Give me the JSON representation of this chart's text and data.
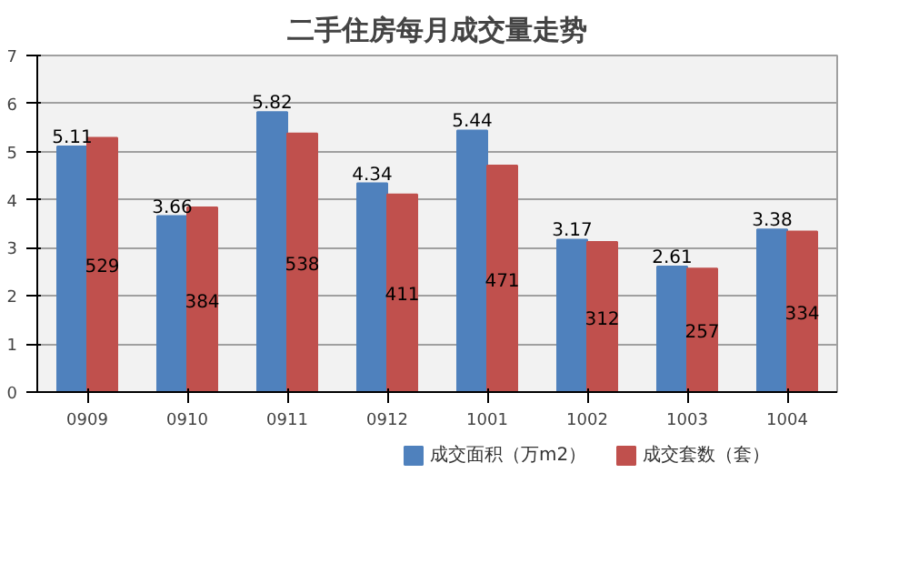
{
  "chart_data": {
    "type": "bar",
    "title": "二手住房每月成交量走势",
    "categories": [
      "0909",
      "0910",
      "0911",
      "0912",
      "1001",
      "1002",
      "1003",
      "1004"
    ],
    "series": [
      {
        "name": "成交面积（万m2）",
        "color": "#4f81bd",
        "values": [
          5.11,
          3.66,
          5.82,
          4.34,
          5.44,
          3.17,
          2.61,
          3.38
        ],
        "data_labels": true
      },
      {
        "name": "成交套数（套）",
        "color": "#c0504d",
        "axis": "y2",
        "values": [
          529,
          384,
          538,
          411,
          471,
          312,
          257,
          334
        ],
        "data_labels": true
      }
    ],
    "ylim": [
      0,
      7
    ],
    "yticks": [
      0,
      1,
      2,
      3,
      4,
      5,
      6,
      7
    ],
    "y2lim": [
      0,
      700
    ],
    "grid": "y",
    "legend": "bottom"
  }
}
